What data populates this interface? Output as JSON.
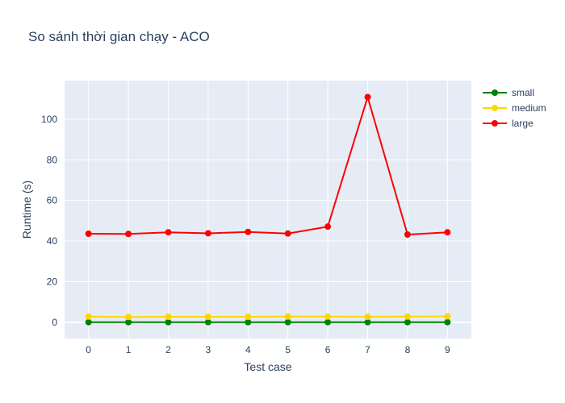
{
  "chart_data": {
    "type": "line",
    "title": "So sánh thời gian chạy - ACO",
    "xlabel": "Test case",
    "ylabel": "Runtime (s)",
    "x": [
      0,
      1,
      2,
      3,
      4,
      5,
      6,
      7,
      8,
      9
    ],
    "xlim": [
      -0.6,
      9.6
    ],
    "ylim": [
      -8,
      119
    ],
    "yticks": [
      0,
      20,
      40,
      60,
      80,
      100
    ],
    "grid": true,
    "legend_position": "top-right",
    "series": [
      {
        "name": "small",
        "color": "#008000",
        "values": [
          0.05,
          0.05,
          0.05,
          0.05,
          0.05,
          0.05,
          0.05,
          0.05,
          0.05,
          0.05
        ]
      },
      {
        "name": "medium",
        "color": "#FFD700",
        "values": [
          2.8,
          2.6,
          2.7,
          2.7,
          2.7,
          2.8,
          2.8,
          2.7,
          2.8,
          2.9
        ]
      },
      {
        "name": "large",
        "color": "#FF0000",
        "values": [
          43.6,
          43.5,
          44.3,
          43.8,
          44.5,
          43.7,
          47.1,
          110.9,
          43.2,
          44.3
        ]
      }
    ]
  }
}
